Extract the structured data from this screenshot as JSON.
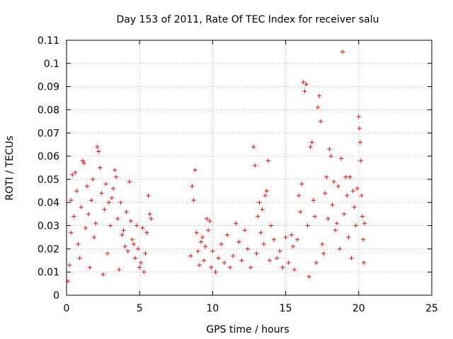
{
  "chart_data": {
    "type": "scatter",
    "title": "Day 153 of 2011, Rate Of TEC Index for receiver salu",
    "xlabel": "GPS time / hours",
    "ylabel": "ROTI / TECUs",
    "xlim": [
      0,
      25
    ],
    "ylim": [
      0,
      0.11
    ],
    "x_ticks": [
      "0",
      "5",
      "10",
      "15",
      "20",
      "25"
    ],
    "y_ticks": [
      "0",
      "0.01",
      "0.02",
      "0.03",
      "0.04",
      "0.05",
      "0.06",
      "0.07",
      "0.08",
      "0.09",
      "0.1",
      "0.11"
    ],
    "grid": true,
    "marker": "+",
    "color": "#ff0000",
    "points": [
      [
        0.1,
        0.006
      ],
      [
        0.2,
        0.013
      ],
      [
        0.3,
        0.027
      ],
      [
        0.3,
        0.041
      ],
      [
        0.4,
        0.052
      ],
      [
        0.5,
        0.034
      ],
      [
        0.6,
        0.053
      ],
      [
        0.7,
        0.045
      ],
      [
        0.8,
        0.022
      ],
      [
        0.9,
        0.016
      ],
      [
        1.0,
        0.038
      ],
      [
        1.1,
        0.058
      ],
      [
        1.2,
        0.057
      ],
      [
        1.3,
        0.029
      ],
      [
        1.4,
        0.047
      ],
      [
        1.5,
        0.035
      ],
      [
        1.6,
        0.012
      ],
      [
        1.7,
        0.041
      ],
      [
        1.8,
        0.05
      ],
      [
        1.9,
        0.025
      ],
      [
        2.0,
        0.031
      ],
      [
        2.1,
        0.064
      ],
      [
        2.2,
        0.062
      ],
      [
        2.3,
        0.055
      ],
      [
        2.4,
        0.044
      ],
      [
        2.5,
        0.009
      ],
      [
        2.6,
        0.037
      ],
      [
        2.7,
        0.048
      ],
      [
        2.8,
        0.018
      ],
      [
        2.9,
        0.04
      ],
      [
        3.0,
        0.03
      ],
      [
        3.1,
        0.042
      ],
      [
        3.2,
        0.046
      ],
      [
        3.3,
        0.054
      ],
      [
        3.4,
        0.051
      ],
      [
        3.5,
        0.033
      ],
      [
        3.6,
        0.011
      ],
      [
        3.7,
        0.04
      ],
      [
        3.8,
        0.026
      ],
      [
        3.9,
        0.028
      ],
      [
        4.0,
        0.021
      ],
      [
        4.1,
        0.036
      ],
      [
        4.2,
        0.019
      ],
      [
        4.3,
        0.049
      ],
      [
        4.4,
        0.032
      ],
      [
        4.5,
        0.024
      ],
      [
        4.6,
        0.022
      ],
      [
        4.7,
        0.016
      ],
      [
        4.8,
        0.03
      ],
      [
        4.9,
        0.02
      ],
      [
        5.0,
        0.012
      ],
      [
        5.1,
        0.014
      ],
      [
        5.2,
        0.029
      ],
      [
        5.3,
        0.01
      ],
      [
        5.4,
        0.018
      ],
      [
        5.5,
        0.027
      ],
      [
        5.6,
        0.043
      ],
      [
        5.7,
        0.035
      ],
      [
        5.8,
        0.033
      ],
      [
        8.5,
        0.017
      ],
      [
        8.6,
        0.047
      ],
      [
        8.7,
        0.041
      ],
      [
        8.8,
        0.054
      ],
      [
        8.9,
        0.027
      ],
      [
        9.0,
        0.019
      ],
      [
        9.1,
        0.013
      ],
      [
        9.2,
        0.023
      ],
      [
        9.3,
        0.025
      ],
      [
        9.4,
        0.015
      ],
      [
        9.5,
        0.021
      ],
      [
        9.6,
        0.033
      ],
      [
        9.7,
        0.028
      ],
      [
        9.8,
        0.032
      ],
      [
        9.9,
        0.012
      ],
      [
        10.0,
        0.019
      ],
      [
        10.2,
        0.01
      ],
      [
        10.4,
        0.016
      ],
      [
        10.6,
        0.022
      ],
      [
        10.8,
        0.014
      ],
      [
        11.0,
        0.026
      ],
      [
        11.2,
        0.012
      ],
      [
        11.4,
        0.017
      ],
      [
        11.6,
        0.031
      ],
      [
        11.8,
        0.023
      ],
      [
        12.0,
        0.015
      ],
      [
        12.2,
        0.028
      ],
      [
        12.4,
        0.02
      ],
      [
        12.6,
        0.012
      ],
      [
        12.8,
        0.064
      ],
      [
        12.9,
        0.056
      ],
      [
        13.0,
        0.018
      ],
      [
        13.1,
        0.034
      ],
      [
        13.2,
        0.04
      ],
      [
        13.3,
        0.027
      ],
      [
        13.4,
        0.037
      ],
      [
        13.5,
        0.022
      ],
      [
        13.6,
        0.043
      ],
      [
        13.7,
        0.045
      ],
      [
        13.8,
        0.058
      ],
      [
        13.9,
        0.015
      ],
      [
        14.0,
        0.03
      ],
      [
        14.2,
        0.024
      ],
      [
        14.4,
        0.016
      ],
      [
        14.6,
        0.019
      ],
      [
        14.8,
        0.012
      ],
      [
        15.0,
        0.025
      ],
      [
        15.2,
        0.014
      ],
      [
        15.4,
        0.026
      ],
      [
        15.5,
        0.021
      ],
      [
        15.6,
        0.011
      ],
      [
        15.8,
        0.024
      ],
      [
        15.9,
        0.043
      ],
      [
        16.0,
        0.036
      ],
      [
        16.1,
        0.048
      ],
      [
        16.2,
        0.092
      ],
      [
        16.3,
        0.088
      ],
      [
        16.4,
        0.091
      ],
      [
        16.5,
        0.03
      ],
      [
        16.6,
        0.008
      ],
      [
        16.7,
        0.064
      ],
      [
        16.8,
        0.066
      ],
      [
        16.9,
        0.041
      ],
      [
        17.0,
        0.034
      ],
      [
        17.1,
        0.014
      ],
      [
        17.2,
        0.081
      ],
      [
        17.3,
        0.086
      ],
      [
        17.4,
        0.075
      ],
      [
        17.5,
        0.022
      ],
      [
        17.6,
        0.018
      ],
      [
        17.7,
        0.044
      ],
      [
        17.8,
        0.051
      ],
      [
        17.9,
        0.033
      ],
      [
        18.0,
        0.063
      ],
      [
        18.1,
        0.06
      ],
      [
        18.2,
        0.039
      ],
      [
        18.3,
        0.049
      ],
      [
        18.4,
        0.028
      ],
      [
        18.5,
        0.031
      ],
      [
        18.6,
        0.047
      ],
      [
        18.7,
        0.02
      ],
      [
        18.8,
        0.059
      ],
      [
        18.9,
        0.105
      ],
      [
        19.0,
        0.035
      ],
      [
        19.1,
        0.051
      ],
      [
        19.2,
        0.043
      ],
      [
        19.3,
        0.025
      ],
      [
        19.4,
        0.051
      ],
      [
        19.5,
        0.016
      ],
      [
        19.6,
        0.045
      ],
      [
        19.7,
        0.038
      ],
      [
        19.8,
        0.03
      ],
      [
        19.9,
        0.046
      ],
      [
        20.0,
        0.077
      ],
      [
        20.05,
        0.072
      ],
      [
        20.1,
        0.066
      ],
      [
        20.15,
        0.058
      ],
      [
        20.2,
        0.043
      ],
      [
        20.25,
        0.034
      ],
      [
        20.3,
        0.024
      ],
      [
        20.35,
        0.014
      ],
      [
        20.4,
        0.031
      ]
    ]
  }
}
